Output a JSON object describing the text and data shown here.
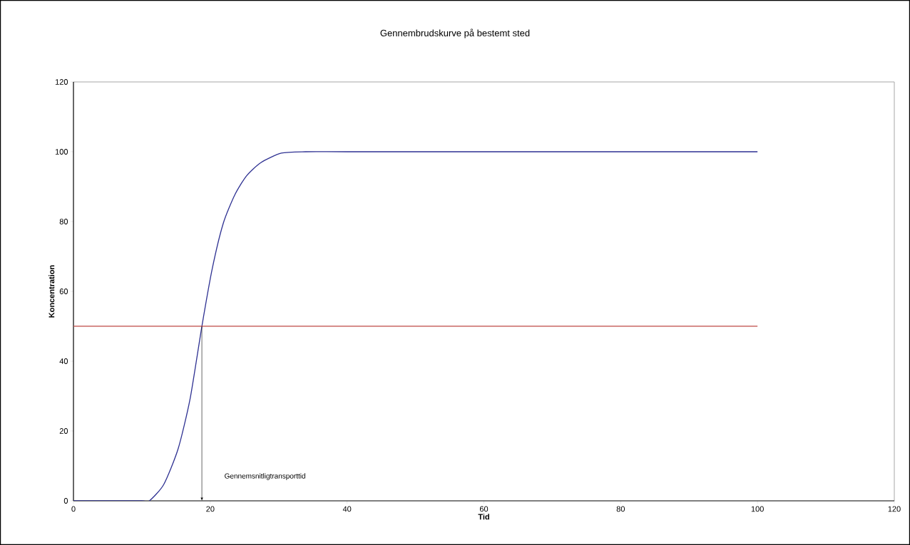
{
  "chart_data": {
    "type": "line",
    "title": "Gennembrudskurve på bestemt sted",
    "xlabel": "Tid",
    "ylabel": "Koncentration",
    "xlim": [
      0,
      120
    ],
    "ylim": [
      0,
      120
    ],
    "xticks": [
      0,
      20,
      40,
      60,
      80,
      100,
      120
    ],
    "yticks": [
      0,
      20,
      40,
      60,
      80,
      100,
      120
    ],
    "grid": false,
    "legend": false,
    "marker": "none",
    "line_style": "solid",
    "series": [
      {
        "color": "#2e3192",
        "x": [
          0,
          5,
          10,
          11.1,
          13.2,
          15.3,
          17.05,
          18.8,
          20.3,
          21.9,
          23.6,
          25.3,
          27.4,
          30.4,
          33.9,
          40,
          60,
          80,
          100
        ],
        "values": [
          0,
          0,
          0,
          0,
          4.7,
          14.9,
          29.2,
          50.3,
          66.6,
          79.5,
          87.7,
          93.1,
          96.9,
          99.6,
          100,
          100,
          100,
          100,
          100
        ]
      },
      {
        "color": "#c0504d",
        "x": [
          0,
          100
        ],
        "values": [
          50,
          50
        ]
      }
    ],
    "annotations": [
      "Gennemsnitligtransporttid"
    ]
  }
}
